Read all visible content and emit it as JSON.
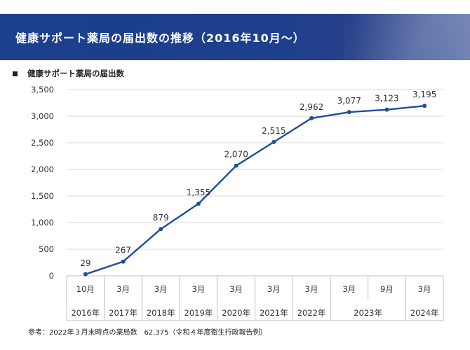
{
  "header": {
    "title": "健康サポート薬局の届出数の推移（2016年10月～）"
  },
  "legend": {
    "label": "健康サポート薬局の届出数"
  },
  "footnote": "参考：2022年３月末時点の薬局数　62,375（令和４年度衛生行政報告例）",
  "colors": {
    "banner": "#1c3f8e",
    "line": "#1f4e9c",
    "grid": "#d9d9d9"
  },
  "chart_data": {
    "type": "line",
    "title": "",
    "xlabel": "",
    "ylabel": "",
    "ylim": [
      0,
      3500
    ],
    "yticks": [
      "0",
      "500",
      "1,000",
      "1,500",
      "2,000",
      "2,500",
      "3,000",
      "3,500"
    ],
    "grid": true,
    "legend_position": "top-left",
    "categories": [
      "10月",
      "3月",
      "3月",
      "3月",
      "3月",
      "3月",
      "3月",
      "3月",
      "9月",
      "3月"
    ],
    "year_groups": [
      {
        "label": "2016年",
        "span": 1
      },
      {
        "label": "2017年",
        "span": 1
      },
      {
        "label": "2018年",
        "span": 1
      },
      {
        "label": "2019年",
        "span": 1
      },
      {
        "label": "2020年",
        "span": 1
      },
      {
        "label": "2021年",
        "span": 1
      },
      {
        "label": "2022年",
        "span": 1
      },
      {
        "label": "2023年",
        "span": 2
      },
      {
        "label": "2024年",
        "span": 1
      }
    ],
    "series": [
      {
        "name": "健康サポート薬局の届出数",
        "values": [
          29,
          267,
          879,
          1355,
          2070,
          2515,
          2962,
          3077,
          3123,
          3195
        ],
        "labels": [
          "29",
          "267",
          "879",
          "1,355",
          "2,070",
          "2,515",
          "2,962",
          "3,077",
          "3,123",
          "3,195"
        ]
      }
    ]
  }
}
